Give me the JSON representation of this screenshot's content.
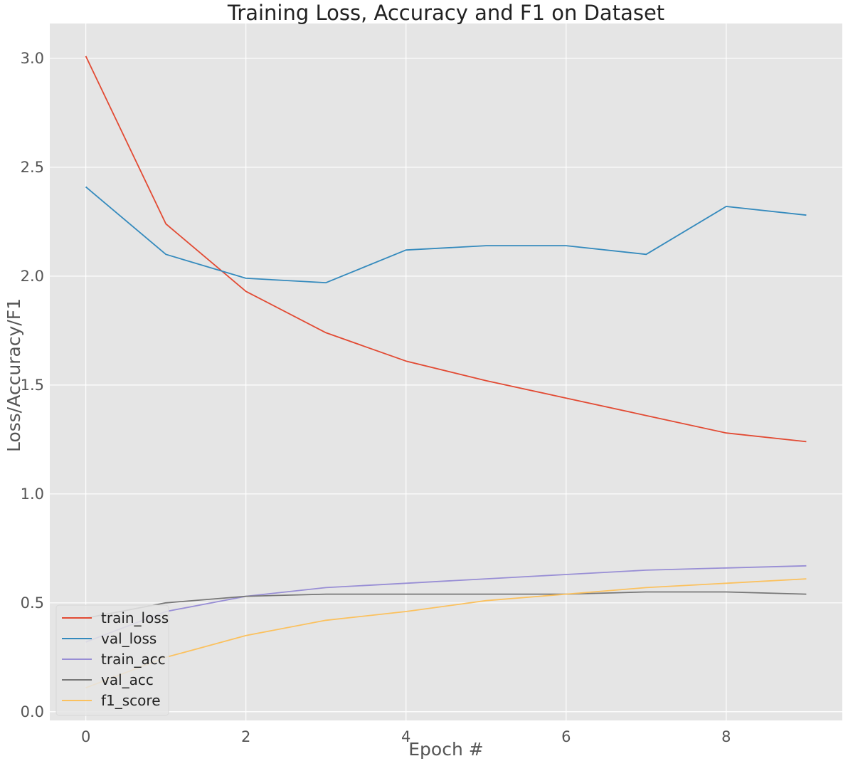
{
  "chart_data": {
    "type": "line",
    "title": "Training Loss, Accuracy and F1 on Dataset",
    "xlabel": "Epoch #",
    "ylabel": "Loss/Accuracy/F1",
    "xlim": [
      -0.45,
      9.45
    ],
    "ylim": [
      -0.04,
      3.16
    ],
    "xticks": [
      0,
      2,
      4,
      6,
      8
    ],
    "yticks": [
      0.0,
      0.5,
      1.0,
      1.5,
      2.0,
      2.5,
      3.0
    ],
    "grid": true,
    "legend_position": "lower-left",
    "x": [
      0,
      1,
      2,
      3,
      4,
      5,
      6,
      7,
      8,
      9
    ],
    "series": [
      {
        "name": "train_loss",
        "color": "#E24A33",
        "values": [
          3.01,
          2.24,
          1.93,
          1.74,
          1.61,
          1.52,
          1.44,
          1.36,
          1.28,
          1.24
        ]
      },
      {
        "name": "val_loss",
        "color": "#348ABD",
        "values": [
          2.41,
          2.1,
          1.99,
          1.97,
          2.12,
          2.14,
          2.14,
          2.1,
          2.32,
          2.28
        ]
      },
      {
        "name": "train_acc",
        "color": "#988ED5",
        "values": [
          0.32,
          0.46,
          0.53,
          0.57,
          0.59,
          0.61,
          0.63,
          0.65,
          0.66,
          0.67
        ]
      },
      {
        "name": "val_acc",
        "color": "#777777",
        "values": [
          0.43,
          0.5,
          0.53,
          0.54,
          0.54,
          0.54,
          0.54,
          0.55,
          0.55,
          0.54
        ]
      },
      {
        "name": "f1_score",
        "color": "#FBC15E",
        "values": [
          0.11,
          0.25,
          0.35,
          0.42,
          0.46,
          0.51,
          0.54,
          0.57,
          0.59,
          0.61
        ]
      }
    ]
  }
}
